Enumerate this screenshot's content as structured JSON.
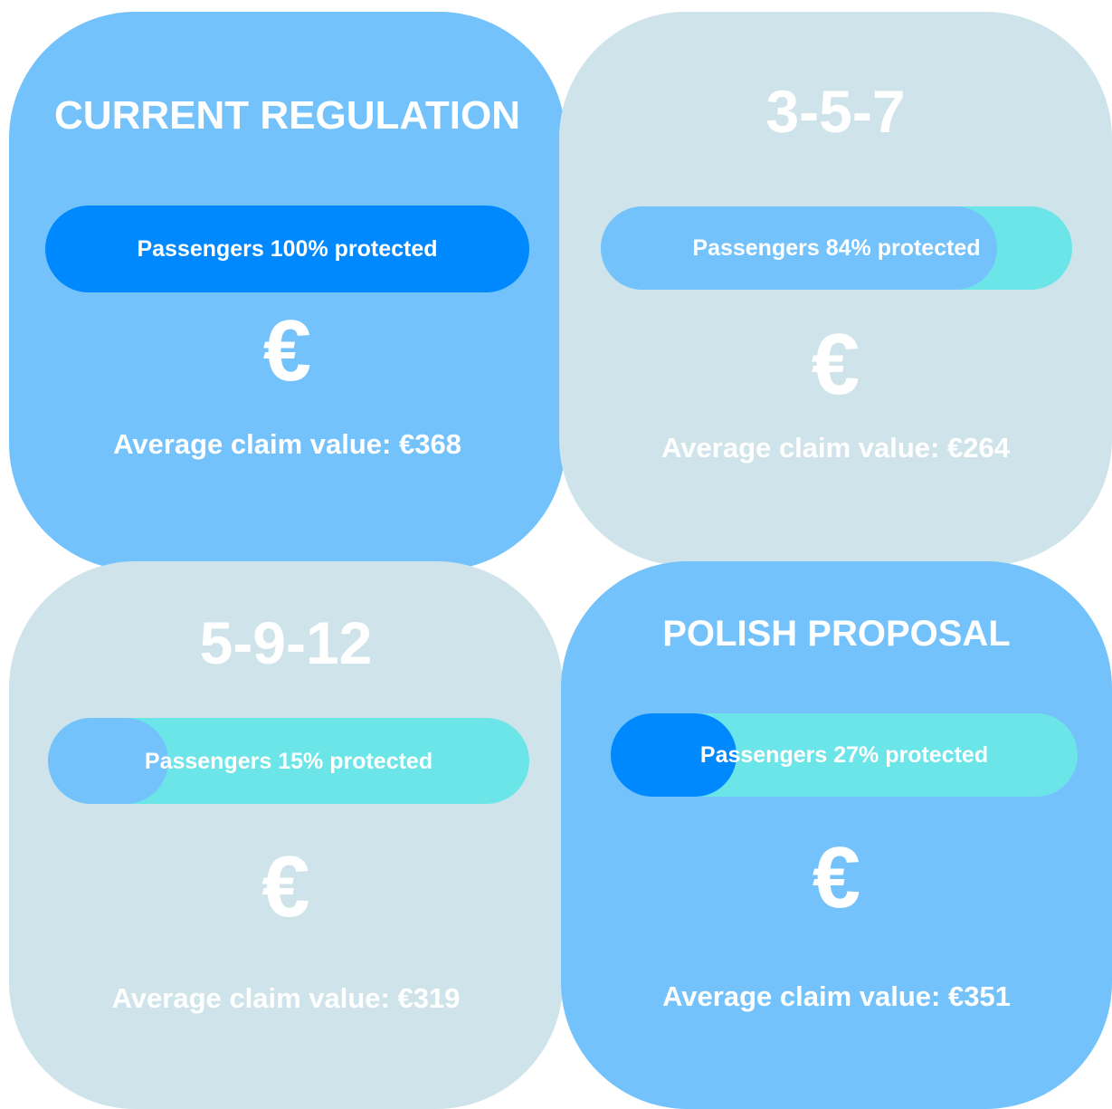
{
  "cards": [
    {
      "title": "CURRENT REGULATION",
      "color": "#73c2fb",
      "protected_label": "Passengers 100% protected",
      "protected": 100,
      "bar_color": "#0088ff",
      "track_color": "#6ce5e8",
      "currency": "€",
      "claim_label": "Average claim value: €368"
    },
    {
      "title": "3-5-7",
      "color": "#cfe4ea",
      "protected_label": "Passengers 84% protected",
      "protected": 84,
      "bar_color": "#73c2fb",
      "track_color": "#6ce5e8",
      "currency": "€",
      "claim_label": "Average claim value: €264"
    },
    {
      "title": "5-9-12",
      "color": "#cfe4ea",
      "protected_label": "Passengers 15% protected",
      "protected": 15,
      "bar_color": "#73c2fb",
      "track_color": "#6ce5e8",
      "currency": "€",
      "claim_label": "Average claim value: €319"
    },
    {
      "title": "POLISH PROPOSAL",
      "color": "#73c2fb",
      "protected_label": "Passengers 27% protected",
      "protected": 27,
      "bar_color": "#0088ff",
      "track_color": "#6ce5e8",
      "currency": "€",
      "claim_label": "Average claim value: €351"
    }
  ]
}
